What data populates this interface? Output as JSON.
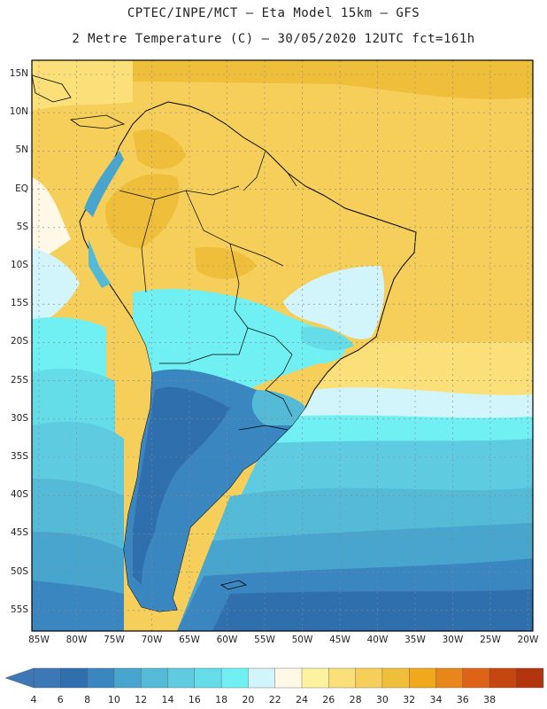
{
  "title_line1": "CPTEC/INPE/MCT –  Eta Model 15km – GFS",
  "title_line2": "2 Metre Temperature (C) – 30/05/2020 12UTC fct=161h",
  "lat_labels": [
    "15N",
    "10N",
    "5N",
    "EQ",
    "5S",
    "10S",
    "15S",
    "20S",
    "25S",
    "30S",
    "35S",
    "40S",
    "45S",
    "50S",
    "55S"
  ],
  "lon_labels": [
    "85W",
    "80W",
    "75W",
    "70W",
    "65W",
    "60W",
    "55W",
    "50W",
    "45W",
    "40W",
    "35W",
    "30W",
    "25W",
    "20W"
  ],
  "colorbar": {
    "labels": [
      "4",
      "6",
      "8",
      "10",
      "12",
      "14",
      "16",
      "18",
      "20",
      "22",
      "24",
      "26",
      "28",
      "30",
      "32",
      "34",
      "36",
      "38"
    ],
    "colors": [
      "#3c78b6",
      "#2f6fad",
      "#3a86c0",
      "#48a5cd",
      "#54bad6",
      "#5fcbe0",
      "#64dde9",
      "#70f0f2",
      "#d2f4fb",
      "#fff8e6",
      "#fdf2a0",
      "#fbe07a",
      "#f5cf5a",
      "#efbf3c",
      "#f0a91c",
      "#e8861c",
      "#dd6316",
      "#c64610",
      "#b3350e"
    ],
    "left_arrow_color": "#3c78b6",
    "right_arrow_color": "#b3350e"
  }
}
